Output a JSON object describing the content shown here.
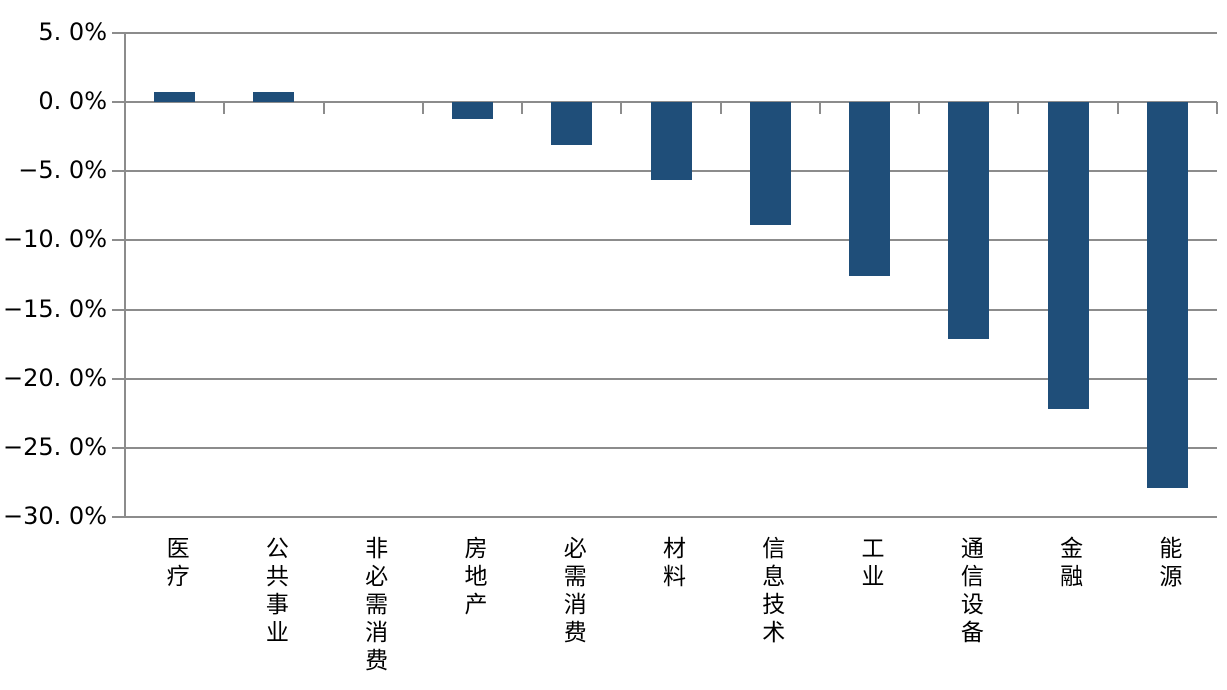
{
  "chart_data": {
    "type": "bar",
    "title": "",
    "categories": [
      "医疗",
      "公共事业",
      "非必需消费",
      "房地产",
      "必需消费",
      "材料",
      "信息技术",
      "工业",
      "通信设备",
      "金融",
      "能源"
    ],
    "values": [
      0.7,
      0.7,
      0.0,
      -1.2,
      -3.1,
      -5.6,
      -8.9,
      -12.6,
      -17.1,
      -22.2,
      -27.9
    ],
    "unit": "%",
    "xlabel": "",
    "ylabel": "",
    "ylim": [
      -30,
      5
    ],
    "ytick_step": 5,
    "yticks": [
      {
        "value": 5,
        "label": "5. 0%"
      },
      {
        "value": 0,
        "label": "0. 0%"
      },
      {
        "value": -5,
        "label": "−5. 0%"
      },
      {
        "value": -10,
        "label": "−10. 0%"
      },
      {
        "value": -15,
        "label": "−15. 0%"
      },
      {
        "value": -20,
        "label": "−20. 0%"
      },
      {
        "value": -25,
        "label": "−25. 0%"
      },
      {
        "value": -30,
        "label": "−30. 0%"
      }
    ],
    "grid": true,
    "legend": false,
    "bar_color": "#1F4E79",
    "gridline_color": "#8C8C8C",
    "axis_color": "#8C8C8C",
    "text_color": "#000000",
    "background_color": "#FFFFFF"
  }
}
